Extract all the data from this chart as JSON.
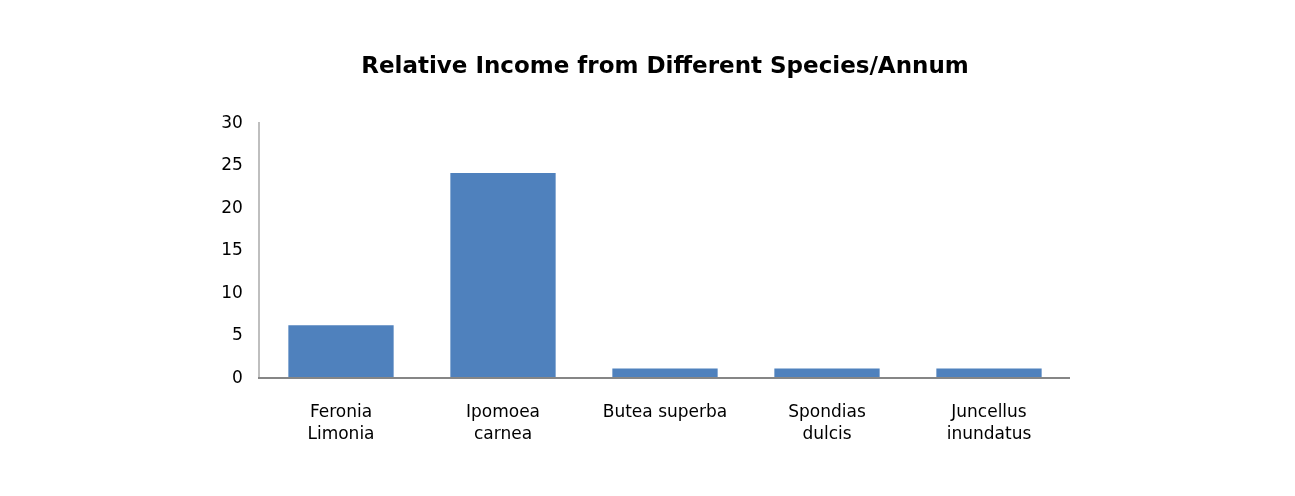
{
  "chart_data": {
    "type": "bar",
    "title": "Relative Income from Different Species/Annum",
    "categories": [
      "Feronia\nLimonia",
      "Ipomoea\ncarnea",
      "Butea superba",
      "Spondias\ndulcis",
      "Juncellus\ninundatus"
    ],
    "values": [
      6.1,
      24.0,
      1.0,
      1.0,
      1.0
    ],
    "color": "#4f81bd",
    "ylim": [
      0,
      30
    ],
    "yticks": [
      0,
      5,
      10,
      15,
      20,
      25,
      30
    ]
  }
}
